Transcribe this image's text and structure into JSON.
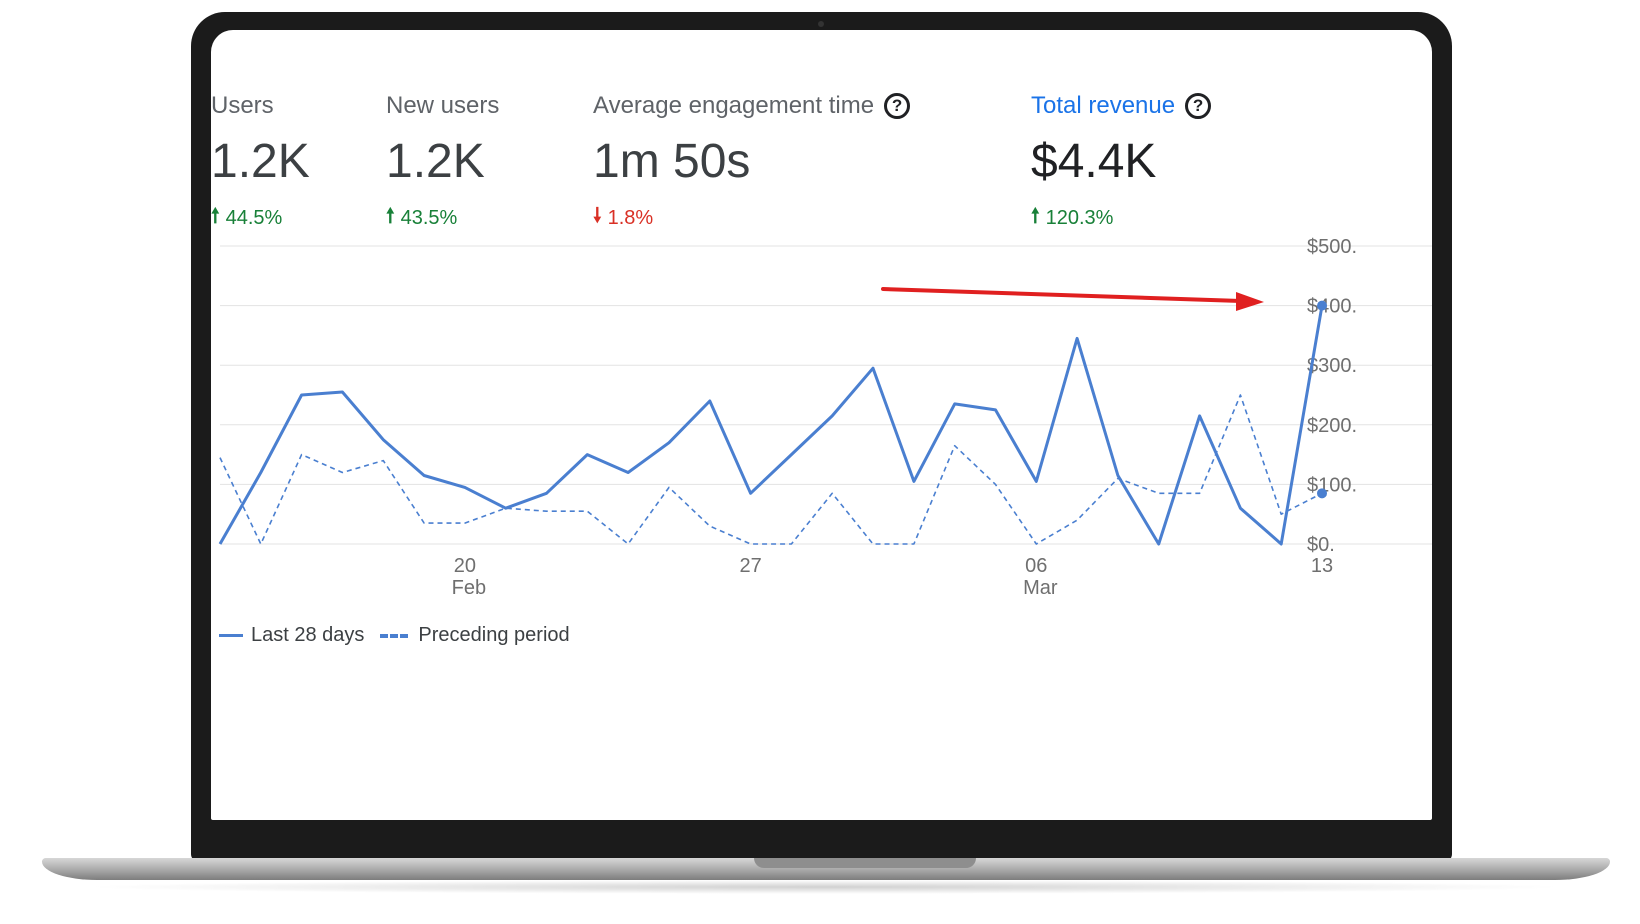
{
  "metrics": [
    {
      "label": "Users",
      "value": "1.2K",
      "change": "44.5%",
      "direction": "up",
      "help": false,
      "accent": false
    },
    {
      "label": "New users",
      "value": "1.2K",
      "change": "43.5%",
      "direction": "up",
      "help": false,
      "accent": false
    },
    {
      "label": "Average engagement time",
      "value": "1m 50s",
      "change": "1.8%",
      "direction": "down",
      "help": true,
      "accent": false
    },
    {
      "label": "Total revenue",
      "value": "$4.4K",
      "change": "120.3%",
      "direction": "up",
      "help": true,
      "accent": true
    }
  ],
  "help_glyph": "?",
  "arrow_up_glyph": "🠕",
  "arrow_down_glyph": "🠗",
  "colors": {
    "series": "#4a7fd0",
    "annotation_arrow": "#e02020",
    "up": "#188038",
    "down": "#d93025",
    "accent": "#1a73e8"
  },
  "legend": {
    "current": "Last 28 days",
    "previous": "Preceding period"
  },
  "chart_data": {
    "type": "line",
    "ylim": [
      0,
      500
    ],
    "y_ticks": [
      0,
      100,
      200,
      300,
      400,
      500
    ],
    "y_tick_labels": [
      "$0.",
      "$100.",
      "$200.",
      "$300.",
      "$400.",
      "$500."
    ],
    "x_ticks": [
      {
        "index": 6,
        "label": "20",
        "sublabel": "Feb"
      },
      {
        "index": 13,
        "label": "27",
        "sublabel": ""
      },
      {
        "index": 20,
        "label": "06",
        "sublabel": "Mar"
      },
      {
        "index": 27,
        "label": "13",
        "sublabel": ""
      }
    ],
    "series": [
      {
        "name": "Last 28 days",
        "style": "solid",
        "values": [
          0,
          120,
          250,
          255,
          175,
          115,
          95,
          60,
          85,
          150,
          120,
          170,
          240,
          85,
          150,
          215,
          295,
          105,
          235,
          225,
          105,
          345,
          115,
          0,
          215,
          60,
          0,
          400
        ]
      },
      {
        "name": "Preceding period",
        "style": "dashed",
        "values": [
          145,
          0,
          150,
          120,
          140,
          35,
          35,
          60,
          55,
          55,
          0,
          95,
          30,
          0,
          0,
          85,
          0,
          0,
          165,
          100,
          0,
          40,
          110,
          85,
          85,
          250,
          50,
          85
        ]
      }
    ],
    "annotation": "red arrow pointing to the latest revenue value"
  }
}
